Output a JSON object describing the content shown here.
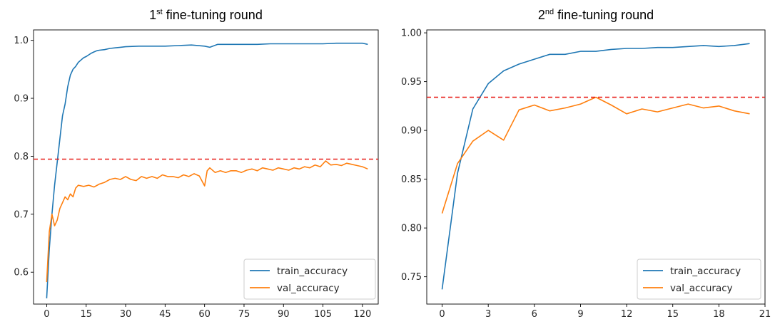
{
  "colors": {
    "train": "#1f77b4",
    "val": "#ff7f0e",
    "ref": "#e8201b"
  },
  "chart_data": [
    {
      "type": "line",
      "title": {
        "main": "1",
        "sup": "st",
        "rest": " fine-tuning round"
      },
      "xlim": [
        -5,
        126
      ],
      "ylim": [
        0.545,
        1.018
      ],
      "xticks": [
        0,
        15,
        30,
        45,
        60,
        75,
        90,
        105,
        120
      ],
      "yticks": [
        0.6,
        0.7,
        0.8,
        0.9,
        1.0
      ],
      "ytick_labels": [
        "0.6",
        "0.7",
        "0.8",
        "0.9",
        "1.0"
      ],
      "reference_line": {
        "y": 0.795,
        "style": "dashed"
      },
      "legend": {
        "position": "bottom-right"
      },
      "series": [
        {
          "name": "train_accuracy",
          "color_key": "train",
          "x": [
            0,
            1,
            2,
            3,
            4,
            5,
            6,
            7,
            8,
            9,
            10,
            11,
            12,
            13,
            14,
            15,
            16,
            17,
            18,
            19,
            20,
            22,
            24,
            26,
            28,
            30,
            35,
            40,
            45,
            50,
            55,
            60,
            62,
            65,
            70,
            75,
            80,
            85,
            90,
            95,
            100,
            105,
            110,
            115,
            120,
            122
          ],
          "y": [
            0.555,
            0.64,
            0.7,
            0.75,
            0.79,
            0.83,
            0.87,
            0.89,
            0.92,
            0.94,
            0.95,
            0.955,
            0.962,
            0.966,
            0.97,
            0.972,
            0.975,
            0.978,
            0.98,
            0.982,
            0.983,
            0.984,
            0.986,
            0.987,
            0.988,
            0.989,
            0.99,
            0.99,
            0.99,
            0.991,
            0.992,
            0.99,
            0.988,
            0.993,
            0.993,
            0.993,
            0.993,
            0.994,
            0.994,
            0.994,
            0.994,
            0.994,
            0.995,
            0.995,
            0.995,
            0.993
          ]
        },
        {
          "name": "val_accuracy",
          "color_key": "val",
          "x": [
            0,
            1,
            2,
            3,
            4,
            5,
            6,
            7,
            8,
            9,
            10,
            11,
            12,
            14,
            16,
            18,
            20,
            22,
            24,
            26,
            28,
            30,
            32,
            34,
            36,
            38,
            40,
            42,
            44,
            46,
            48,
            50,
            52,
            54,
            56,
            58,
            60,
            61,
            62,
            64,
            66,
            68,
            70,
            72,
            74,
            76,
            78,
            80,
            82,
            84,
            86,
            88,
            90,
            92,
            94,
            96,
            98,
            100,
            102,
            104,
            106,
            108,
            110,
            112,
            114,
            116,
            118,
            120,
            122
          ],
          "y": [
            0.583,
            0.67,
            0.7,
            0.68,
            0.69,
            0.71,
            0.72,
            0.73,
            0.725,
            0.735,
            0.73,
            0.745,
            0.75,
            0.748,
            0.75,
            0.747,
            0.752,
            0.755,
            0.76,
            0.762,
            0.76,
            0.765,
            0.76,
            0.758,
            0.765,
            0.762,
            0.765,
            0.762,
            0.768,
            0.765,
            0.765,
            0.763,
            0.768,
            0.765,
            0.77,
            0.766,
            0.749,
            0.775,
            0.78,
            0.772,
            0.775,
            0.772,
            0.775,
            0.775,
            0.772,
            0.776,
            0.778,
            0.775,
            0.78,
            0.778,
            0.776,
            0.78,
            0.778,
            0.776,
            0.78,
            0.778,
            0.782,
            0.78,
            0.785,
            0.782,
            0.792,
            0.785,
            0.786,
            0.784,
            0.788,
            0.786,
            0.784,
            0.782,
            0.778
          ]
        }
      ]
    },
    {
      "type": "line",
      "title": {
        "main": "2",
        "sup": "nd",
        "rest": " fine-tuning round"
      },
      "xlim": [
        -1,
        21
      ],
      "ylim": [
        0.722,
        1.003
      ],
      "xticks": [
        0,
        3,
        6,
        9,
        12,
        15,
        18,
        21
      ],
      "yticks": [
        0.75,
        0.8,
        0.85,
        0.9,
        0.95,
        1.0
      ],
      "ytick_labels": [
        "0.75",
        "0.80",
        "0.85",
        "0.90",
        "0.95",
        "1.00"
      ],
      "reference_line": {
        "y": 0.934,
        "style": "dashed"
      },
      "legend": {
        "position": "bottom-right"
      },
      "series": [
        {
          "name": "train_accuracy",
          "color_key": "train",
          "x": [
            0,
            1,
            2,
            3,
            4,
            5,
            6,
            7,
            8,
            9,
            10,
            11,
            12,
            13,
            14,
            15,
            16,
            17,
            18,
            19,
            20
          ],
          "y": [
            0.737,
            0.856,
            0.922,
            0.948,
            0.961,
            0.968,
            0.973,
            0.978,
            0.978,
            0.981,
            0.981,
            0.983,
            0.984,
            0.984,
            0.985,
            0.985,
            0.986,
            0.987,
            0.986,
            0.987,
            0.989
          ]
        },
        {
          "name": "val_accuracy",
          "color_key": "val",
          "x": [
            0,
            1,
            2,
            3,
            4,
            5,
            6,
            7,
            8,
            9,
            10,
            11,
            12,
            13,
            14,
            15,
            16,
            17,
            18,
            19,
            20
          ],
          "y": [
            0.815,
            0.866,
            0.889,
            0.9,
            0.89,
            0.921,
            0.926,
            0.92,
            0.923,
            0.927,
            0.934,
            0.926,
            0.917,
            0.922,
            0.919,
            0.923,
            0.927,
            0.923,
            0.925,
            0.92,
            0.917
          ]
        }
      ]
    }
  ]
}
